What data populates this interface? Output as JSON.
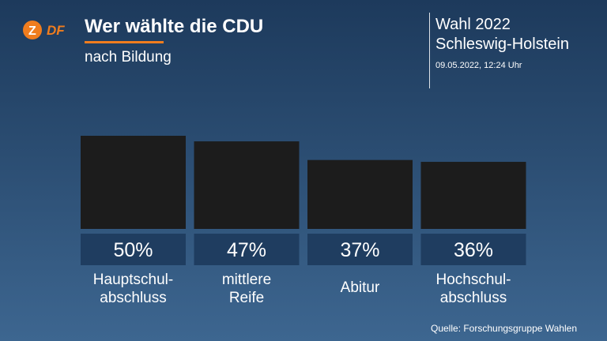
{
  "header": {
    "title": "Wer wählte die CDU",
    "subtitle": "nach Bildung",
    "event_line1": "Wahl 2022",
    "event_line2": "Schleswig-Holstein",
    "timestamp": "09.05.2022, 12:24 Uhr"
  },
  "brand": {
    "logo_text": "ZDF",
    "accent_color": "#f07d1e"
  },
  "chart_data": {
    "type": "bar",
    "title": "Wer wählte die CDU",
    "subtitle": "nach Bildung",
    "categories": [
      [
        "Hauptschul-",
        "abschluss"
      ],
      [
        "mittlere",
        "Reife"
      ],
      [
        "Abitur"
      ],
      [
        "Hochschul-",
        "abschluss"
      ]
    ],
    "series": [
      {
        "values": [
          50,
          47,
          37,
          36
        ],
        "labels": [
          "50%",
          "47%",
          "37%",
          "36%"
        ],
        "color": "#1c1c1c"
      }
    ],
    "ylim": [
      0,
      50
    ],
    "grid": false,
    "legend": "none",
    "label_box_color": "#1f3d60"
  },
  "footer": {
    "source": "Quelle: Forschungsgruppe Wahlen"
  }
}
